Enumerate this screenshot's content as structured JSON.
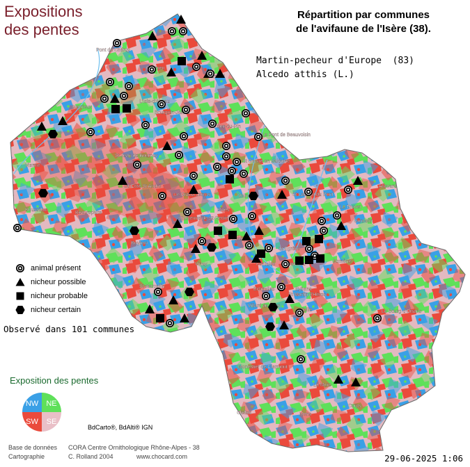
{
  "title": {
    "line1": "Expositions",
    "line2": "des pentes"
  },
  "header": {
    "line1": "Répartition par communes",
    "line2": "de l'avifaune de l'Isère (38)."
  },
  "species": {
    "common_name": "Martin-pecheur d'Europe  (83)",
    "latin_name": "Alcedo atthis (L.)"
  },
  "legend": [
    {
      "symbol": "circle-target-icon",
      "label": "animal présent"
    },
    {
      "symbol": "triangle-icon",
      "label": "nicheur possible"
    },
    {
      "symbol": "square-icon",
      "label": "nicheur probable"
    },
    {
      "symbol": "hexagon-icon",
      "label": "nicheur certain"
    }
  ],
  "observed_text": "Observé dans 101 communes",
  "exposition": {
    "title": "Exposition des pentes",
    "quadrants": [
      {
        "code": "NW",
        "color": "#3aa0e6"
      },
      {
        "code": "NE",
        "color": "#5fe05a"
      },
      {
        "code": "SW",
        "color": "#ea4a3c"
      },
      {
        "code": "SE",
        "color": "#e9bfc7"
      }
    ]
  },
  "source_label": "BdCarto®, BdAlti® IGN",
  "credits": {
    "db_label": "Base de données",
    "db_value": "CORA Centre Ornithologique Rhône-Alpes - 38",
    "carto_label": "Cartographie",
    "carto_value": "C. Rolland 2004",
    "website": "www.chocard.com"
  },
  "date": "29-06-2025 1:06",
  "colors": {
    "title": "#7a1f2b",
    "legend_title": "#1a6a2e",
    "outside": "#ffffff"
  },
  "place_labels": [
    "Pont de Chéruy",
    "Crémieu",
    "Morestel",
    "L'Isle-d'Abeau",
    "Bourgoin-Jallieu",
    "Heyrieux",
    "La Tour-du-Pin",
    "Le Pont de Beauvoisin",
    "Vienne",
    "St Jean de Bournay",
    "St Geoire en Valdaine",
    "La Côte St André",
    "Le Grand Lemps",
    "Roussillon",
    "Beaurepaire",
    "St Etienne de St Geoirs",
    "Voiron",
    "Rives",
    "St Laurent du Pont",
    "Allevard",
    "Le Touvet",
    "Goncelin",
    "Roybon",
    "Vinay",
    "Voreppe",
    "Fontaine",
    "Grenoble",
    "Echirolles",
    "St Martin d'Hères",
    "Domène",
    "St Marcellin",
    "St Egrève",
    "Vizille",
    "Eybens",
    "Villard de Lans",
    "Le Bourg d'Oisans",
    "Monestier de Clermont",
    "La Mure",
    "Corps",
    "Clelles",
    "Mens"
  ]
}
